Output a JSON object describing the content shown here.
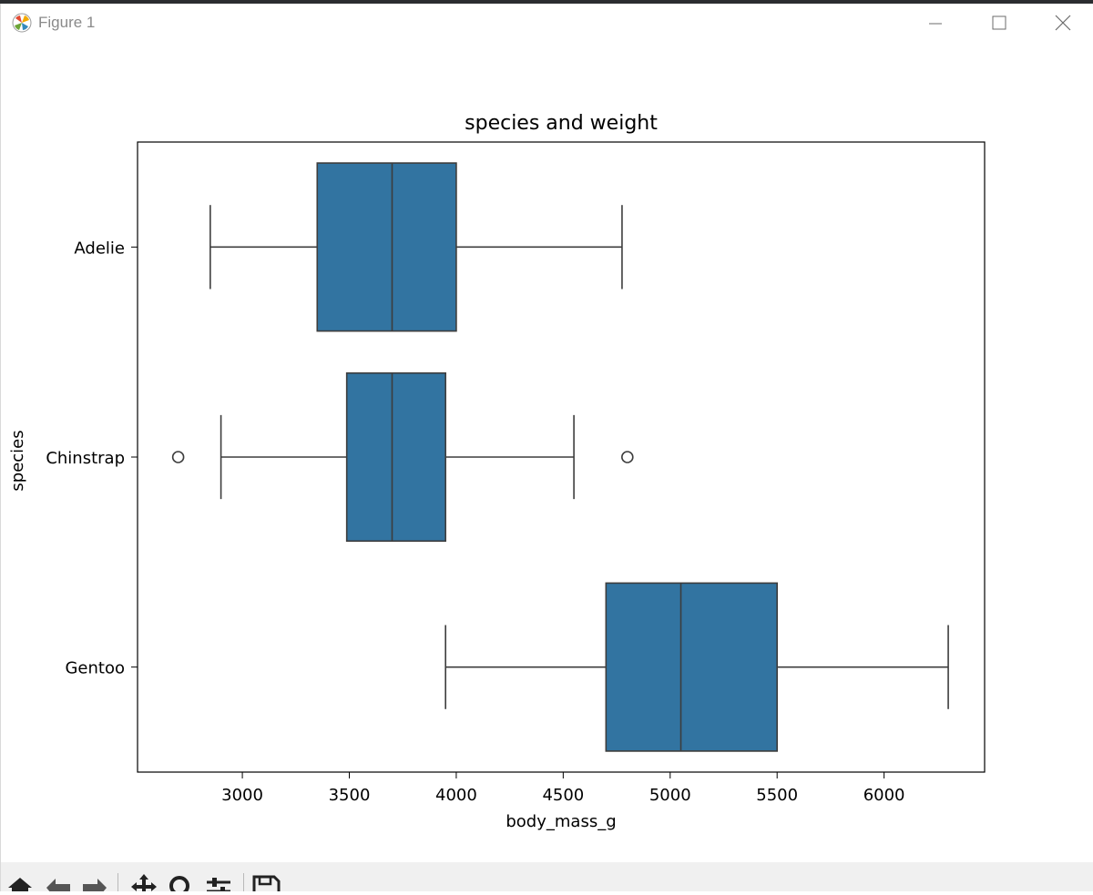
{
  "window": {
    "title": "Figure 1",
    "icon": "matplotlib-logo-icon",
    "controls": [
      "minimize-icon",
      "maximize-icon",
      "close-icon"
    ]
  },
  "toolbar": {
    "buttons": [
      "home-icon",
      "back-arrow-icon",
      "forward-arrow-icon",
      "pan-move-icon",
      "zoom-magnifier-icon",
      "configure-subplots-icon",
      "save-figure-icon"
    ]
  },
  "chart_data": {
    "type": "boxplot",
    "orientation": "horizontal",
    "title": "species and weight",
    "xlabel": "body_mass_g",
    "ylabel": "species",
    "xlim": [
      2510,
      6470
    ],
    "xticks": [
      3000,
      3500,
      4000,
      4500,
      5000,
      5500,
      6000
    ],
    "grid": false,
    "legend": "none",
    "box_color": "#3274a1",
    "line_color": "#3d3d3d",
    "categories": [
      "Adelie",
      "Chinstrap",
      "Gentoo"
    ],
    "boxes": [
      {
        "category": "Adelie",
        "whisker_low": 2850,
        "q1": 3350,
        "median": 3700,
        "q3": 4000,
        "whisker_high": 4775,
        "outliers": []
      },
      {
        "category": "Chinstrap",
        "whisker_low": 2900,
        "q1": 3488,
        "median": 3700,
        "q3": 3950,
        "whisker_high": 4550,
        "outliers": [
          2700,
          4800
        ]
      },
      {
        "category": "Gentoo",
        "whisker_low": 3950,
        "q1": 4700,
        "median": 5050,
        "q3": 5500,
        "whisker_high": 6300,
        "outliers": []
      }
    ]
  }
}
